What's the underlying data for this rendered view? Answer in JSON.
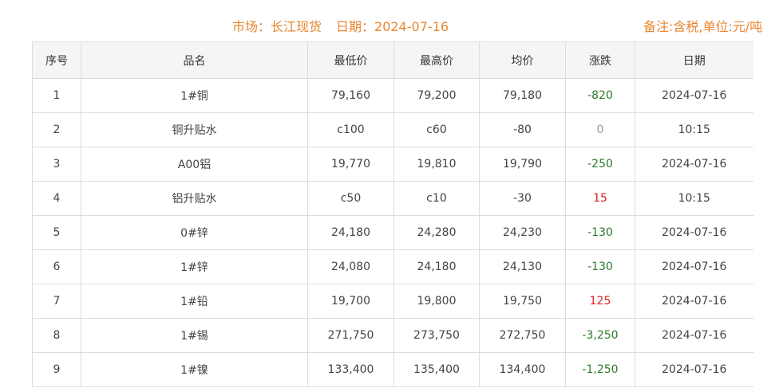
{
  "header": {
    "market": "市场：长江现货",
    "date": "日期：2024-07-16",
    "note": "备注:含税,单位:元/吨"
  },
  "colors": {
    "accent": "#e8862e",
    "down": "#2c7a2c",
    "up": "#e0201c",
    "flat": "#999999"
  },
  "columns": [
    "序号",
    "品名",
    "最低价",
    "最高价",
    "均价",
    "涨跌",
    "日期"
  ],
  "rows": [
    {
      "no": "1",
      "name": "1#铜",
      "low": "79,160",
      "high": "79,200",
      "avg": "79,180",
      "change": "-820",
      "trend": "down",
      "date": "2024-07-16"
    },
    {
      "no": "2",
      "name": "铜升贴水",
      "low": "c100",
      "high": "c60",
      "avg": "-80",
      "change": "0",
      "trend": "flat",
      "date": "10:15"
    },
    {
      "no": "3",
      "name": "A00铝",
      "low": "19,770",
      "high": "19,810",
      "avg": "19,790",
      "change": "-250",
      "trend": "down",
      "date": "2024-07-16"
    },
    {
      "no": "4",
      "name": "铝升贴水",
      "low": "c50",
      "high": "c10",
      "avg": "-30",
      "change": "15",
      "trend": "up",
      "date": "10:15"
    },
    {
      "no": "5",
      "name": "0#锌",
      "low": "24,180",
      "high": "24,280",
      "avg": "24,230",
      "change": "-130",
      "trend": "down",
      "date": "2024-07-16"
    },
    {
      "no": "6",
      "name": "1#锌",
      "low": "24,080",
      "high": "24,180",
      "avg": "24,130",
      "change": "-130",
      "trend": "down",
      "date": "2024-07-16"
    },
    {
      "no": "7",
      "name": "1#铅",
      "low": "19,700",
      "high": "19,800",
      "avg": "19,750",
      "change": "125",
      "trend": "up",
      "date": "2024-07-16"
    },
    {
      "no": "8",
      "name": "1#锡",
      "low": "271,750",
      "high": "273,750",
      "avg": "272,750",
      "change": "-3,250",
      "trend": "down",
      "date": "2024-07-16"
    },
    {
      "no": "9",
      "name": "1#镍",
      "low": "133,400",
      "high": "135,400",
      "avg": "134,400",
      "change": "-1,250",
      "trend": "down",
      "date": "2024-07-16"
    }
  ]
}
